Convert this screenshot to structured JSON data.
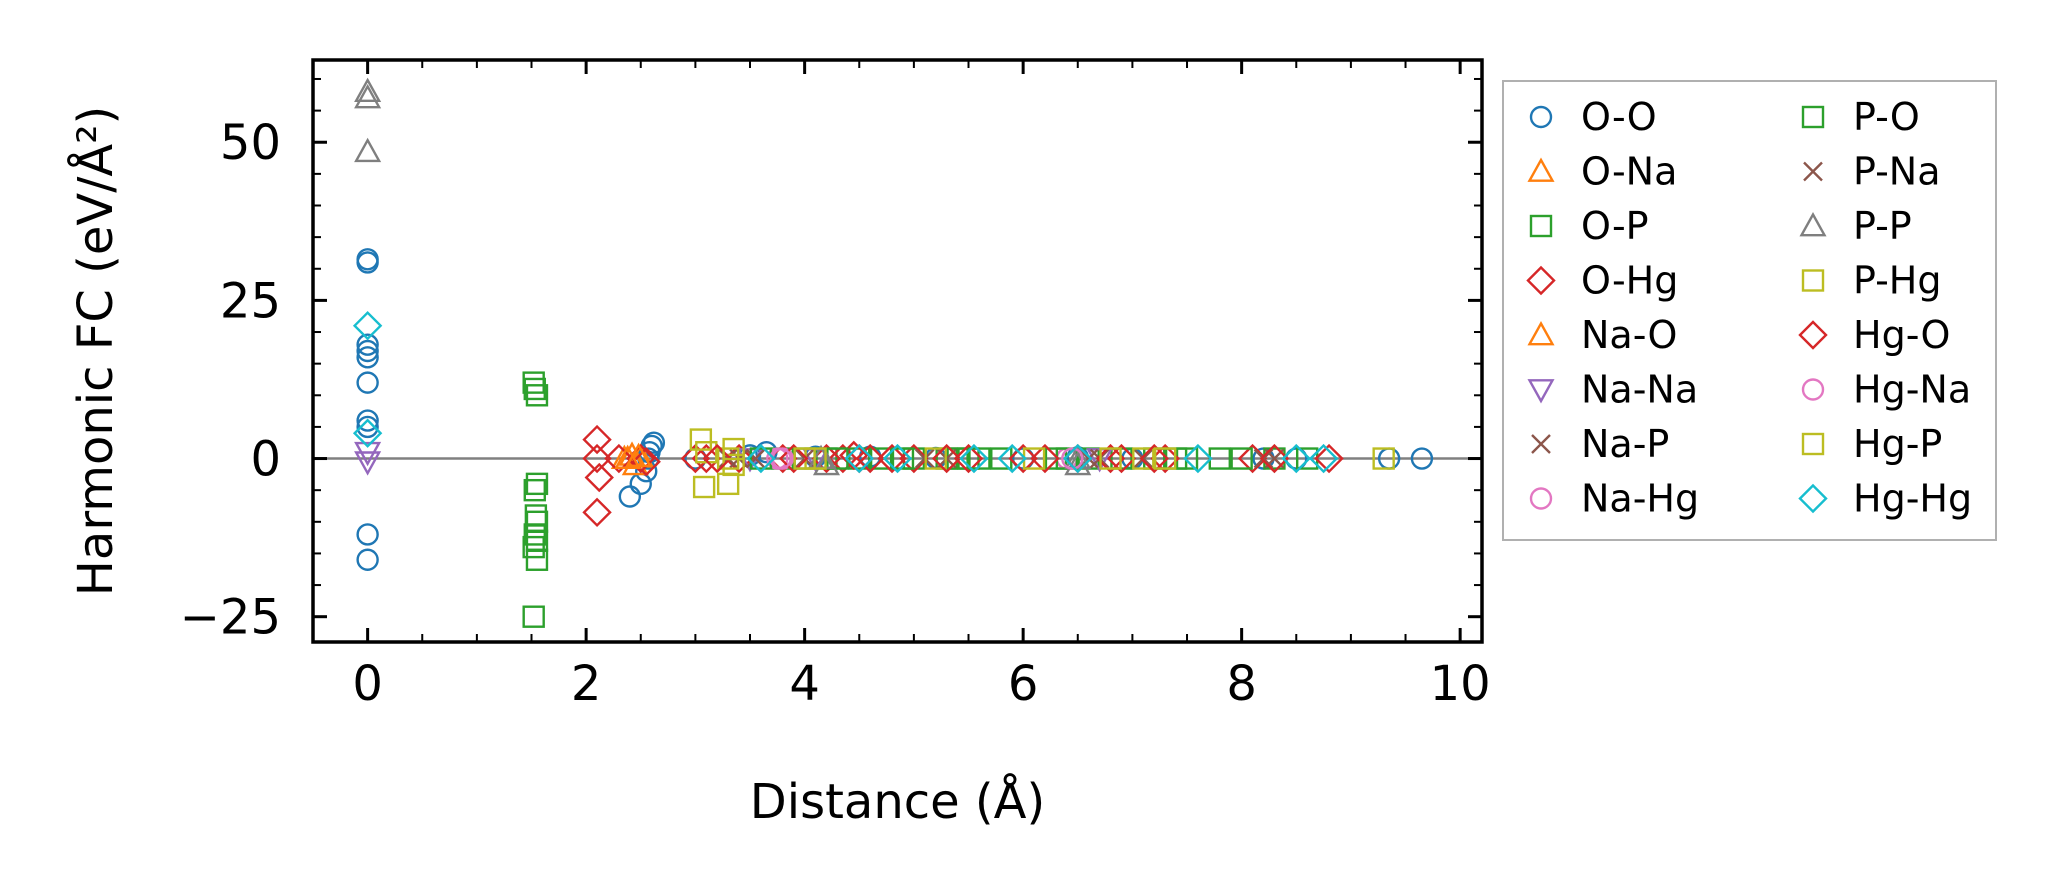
{
  "chart_data": {
    "type": "scatter",
    "title": "",
    "xlabel": "Distance (Å)",
    "ylabel": "Harmonic FC (eV/Å²)",
    "xlim": [
      -0.5,
      10.2
    ],
    "ylim": [
      -29,
      63
    ],
    "xticks": [
      0,
      2,
      4,
      6,
      8,
      10
    ],
    "xtick_labels": [
      "0",
      "2",
      "4",
      "6",
      "8",
      "10"
    ],
    "yticks": [
      -25,
      0,
      25,
      50
    ],
    "ytick_labels": [
      "−25",
      "0",
      "25",
      "50"
    ],
    "zero_line": true,
    "legend_position": "outside-right",
    "series": [
      {
        "name": "O-O",
        "color": "#1f77b4",
        "marker": "circle",
        "points": [
          [
            0,
            31.5
          ],
          [
            0,
            31
          ],
          [
            0,
            18
          ],
          [
            0,
            17
          ],
          [
            0,
            16
          ],
          [
            0,
            12
          ],
          [
            0,
            6
          ],
          [
            0,
            5
          ],
          [
            0,
            -12
          ],
          [
            0,
            -16
          ],
          [
            2.4,
            -6
          ],
          [
            2.5,
            -4
          ],
          [
            2.55,
            -2
          ],
          [
            2.57,
            0
          ],
          [
            2.58,
            1
          ],
          [
            2.6,
            2
          ],
          [
            2.62,
            2.5
          ],
          [
            3.0,
            0
          ],
          [
            3.5,
            0.5
          ],
          [
            3.65,
            1
          ],
          [
            4.1,
            0.3
          ],
          [
            4.6,
            0.3
          ],
          [
            5.2,
            0.1
          ],
          [
            6.0,
            0
          ],
          [
            6.5,
            0.2
          ],
          [
            7.0,
            0
          ],
          [
            8.2,
            0
          ],
          [
            8.5,
            0
          ],
          [
            9.35,
            0
          ],
          [
            9.65,
            0
          ]
        ]
      },
      {
        "name": "O-Na",
        "color": "#ff7f0e",
        "marker": "triangle-up",
        "points": [
          [
            2.35,
            0
          ],
          [
            2.42,
            0.5
          ],
          [
            2.45,
            -1
          ],
          [
            2.5,
            0.2
          ]
        ]
      },
      {
        "name": "O-P",
        "color": "#2ca02c",
        "marker": "square",
        "points": [
          [
            1.52,
            12
          ],
          [
            1.53,
            11
          ],
          [
            1.55,
            10
          ],
          [
            1.55,
            -4
          ],
          [
            1.53,
            -5
          ],
          [
            1.54,
            -9
          ],
          [
            1.55,
            -10
          ],
          [
            1.53,
            -12
          ],
          [
            1.55,
            -13
          ],
          [
            1.52,
            -14
          ],
          [
            1.55,
            -16
          ],
          [
            1.52,
            -25
          ],
          [
            3.8,
            0
          ],
          [
            4.0,
            0
          ],
          [
            4.2,
            0
          ],
          [
            4.5,
            0
          ],
          [
            4.7,
            0
          ],
          [
            5.0,
            0
          ],
          [
            5.3,
            0
          ],
          [
            5.4,
            0
          ],
          [
            5.5,
            0
          ],
          [
            5.8,
            0
          ],
          [
            6.3,
            0
          ],
          [
            6.6,
            0
          ],
          [
            6.9,
            0
          ],
          [
            7.2,
            0
          ],
          [
            7.5,
            0
          ],
          [
            7.8,
            0
          ],
          [
            8.3,
            0
          ],
          [
            8.6,
            0
          ]
        ]
      },
      {
        "name": "O-Hg",
        "color": "#d62728",
        "marker": "diamond",
        "points": [
          [
            2.1,
            3
          ],
          [
            2.1,
            0
          ],
          [
            2.12,
            -3
          ],
          [
            2.1,
            -8.5
          ],
          [
            2.3,
            0
          ],
          [
            2.5,
            0
          ],
          [
            2.55,
            -0.5
          ],
          [
            3.0,
            0
          ],
          [
            3.1,
            0
          ],
          [
            3.4,
            0
          ],
          [
            3.8,
            0
          ],
          [
            4.2,
            0
          ],
          [
            4.35,
            0
          ],
          [
            4.45,
            0.5
          ],
          [
            4.6,
            0
          ],
          [
            4.8,
            0
          ],
          [
            5.0,
            0
          ],
          [
            5.5,
            0
          ],
          [
            6.0,
            0
          ],
          [
            6.5,
            0
          ],
          [
            6.9,
            0
          ],
          [
            7.3,
            0
          ],
          [
            8.1,
            0
          ],
          [
            8.8,
            0
          ]
        ]
      },
      {
        "name": "Na-O",
        "color": "#ff7f0e",
        "marker": "triangle-up",
        "points": [
          [
            2.38,
            0
          ],
          [
            2.48,
            0.3
          ]
        ]
      },
      {
        "name": "Na-Na",
        "color": "#9467bd",
        "marker": "triangle-down",
        "points": [
          [
            0,
            1
          ],
          [
            0,
            -0.5
          ],
          [
            3.5,
            0
          ],
          [
            4.1,
            0
          ],
          [
            6.7,
            0
          ]
        ]
      },
      {
        "name": "Na-P",
        "color": "#8c564b",
        "marker": "x",
        "points": [
          [
            3.3,
            0
          ],
          [
            3.55,
            0
          ],
          [
            4.0,
            0
          ],
          [
            5.3,
            0
          ],
          [
            6.6,
            0
          ],
          [
            7.1,
            0
          ],
          [
            8.2,
            0
          ]
        ]
      },
      {
        "name": "Na-Hg",
        "color": "#e377c2",
        "marker": "circle",
        "points": [
          [
            3.75,
            0
          ],
          [
            3.8,
            0
          ],
          [
            6.4,
            0
          ]
        ]
      },
      {
        "name": "P-O",
        "color": "#2ca02c",
        "marker": "square",
        "points": [
          [
            3.6,
            0
          ],
          [
            4.3,
            0
          ],
          [
            4.9,
            0
          ],
          [
            5.6,
            0
          ],
          [
            6.4,
            0
          ],
          [
            7.4,
            0
          ],
          [
            8.0,
            0
          ]
        ]
      },
      {
        "name": "P-Na",
        "color": "#8c564b",
        "marker": "x",
        "points": [
          [
            3.4,
            0
          ],
          [
            5.1,
            0
          ],
          [
            6.7,
            0
          ],
          [
            8.3,
            0
          ]
        ]
      },
      {
        "name": "P-P",
        "color": "#7f7f7f",
        "marker": "triangle-up",
        "points": [
          [
            0,
            58
          ],
          [
            0,
            57
          ],
          [
            0,
            48.5
          ],
          [
            4.15,
            0
          ],
          [
            4.2,
            -1
          ],
          [
            6.5,
            -1
          ],
          [
            6.5,
            0
          ]
        ]
      },
      {
        "name": "P-Hg",
        "color": "#bcbd22",
        "marker": "square",
        "points": [
          [
            3.05,
            3
          ],
          [
            3.1,
            1
          ],
          [
            3.3,
            0
          ],
          [
            3.35,
            -1
          ],
          [
            4.1,
            0
          ],
          [
            5.2,
            0
          ],
          [
            7.1,
            0
          ]
        ]
      },
      {
        "name": "Hg-O",
        "color": "#d62728",
        "marker": "diamond",
        "points": [
          [
            3.2,
            0
          ],
          [
            3.9,
            0
          ],
          [
            4.5,
            0
          ],
          [
            5.3,
            0
          ],
          [
            6.2,
            0
          ],
          [
            6.8,
            0
          ],
          [
            7.2,
            0
          ],
          [
            8.3,
            0
          ]
        ]
      },
      {
        "name": "Hg-Na",
        "color": "#e377c2",
        "marker": "circle",
        "points": [
          [
            3.78,
            0
          ],
          [
            6.45,
            0
          ]
        ]
      },
      {
        "name": "Hg-P",
        "color": "#bcbd22",
        "marker": "square",
        "points": [
          [
            3.08,
            -4.5
          ],
          [
            3.3,
            -4
          ],
          [
            3.35,
            1.5
          ],
          [
            4.0,
            0
          ],
          [
            6.1,
            0
          ],
          [
            6.8,
            0
          ],
          [
            7.3,
            0
          ],
          [
            9.3,
            0
          ]
        ]
      },
      {
        "name": "Hg-Hg",
        "color": "#17becf",
        "marker": "diamond",
        "points": [
          [
            0,
            21
          ],
          [
            0,
            4
          ],
          [
            3.6,
            0
          ],
          [
            4.5,
            0
          ],
          [
            4.85,
            0
          ],
          [
            5.55,
            0
          ],
          [
            5.9,
            0
          ],
          [
            6.5,
            0
          ],
          [
            7.6,
            0
          ],
          [
            8.5,
            0
          ],
          [
            8.75,
            0
          ]
        ]
      }
    ]
  }
}
